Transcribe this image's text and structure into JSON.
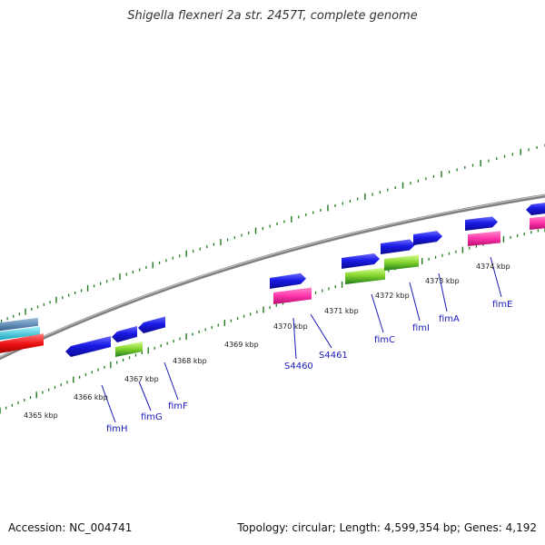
{
  "title": "Shigella flexneri 2a str. 2457T, complete genome",
  "footer": {
    "accession": "Accession: NC_004741",
    "stats": "Topology: circular; Length: 4,599,354 bp; Genes: 4,192"
  },
  "colors": {
    "backbone": "#808080",
    "tick": "#1f7a1f",
    "gene_feature": "#1a1ae6",
    "cds_feature": "#ff33aa",
    "rna_feature": "#7fd12a",
    "other_blue": "#4682b4",
    "other_cyan": "#20c8d8",
    "other_red": "#ee1111",
    "label": "#1a1ab8"
  },
  "kbp_labels": [
    "4365 kbp",
    "4366 kbp",
    "4367 kbp",
    "4368 kbp",
    "4369 kbp",
    "4370 kbp",
    "4371 kbp",
    "4372 kbp",
    "4373 kbp",
    "4374 kbp"
  ],
  "genes": [
    "fimH",
    "fimG",
    "fimF",
    "S4460",
    "S4461",
    "fimC",
    "fimI",
    "fimA",
    "fimE"
  ]
}
